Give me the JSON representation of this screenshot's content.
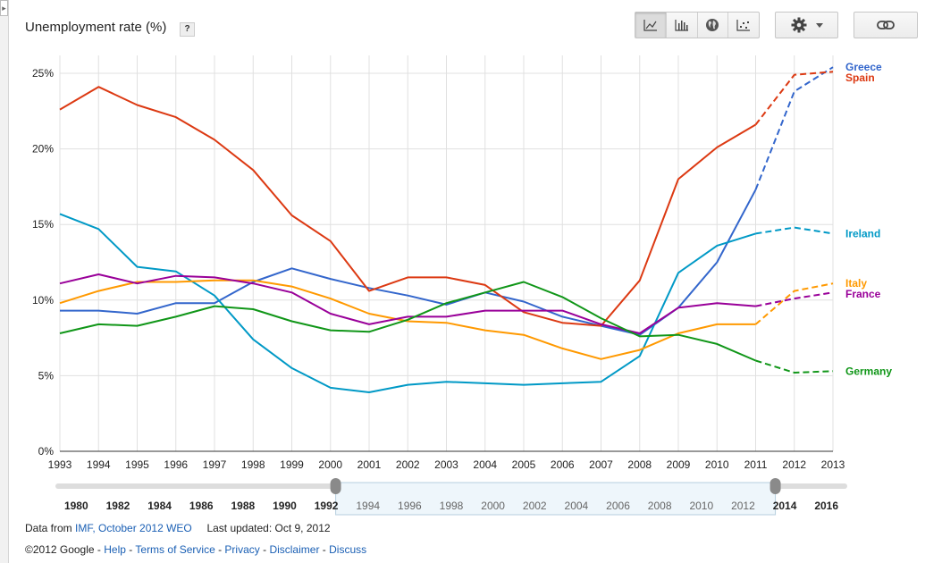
{
  "title": "Unemployment rate (%)",
  "help_label": "?",
  "expand_label": "▸",
  "toolbar": {
    "chart_types": [
      {
        "icon": "line-chart-icon",
        "active": true
      },
      {
        "icon": "bar-chart-icon",
        "active": false
      },
      {
        "icon": "globe-map-icon",
        "active": false
      },
      {
        "icon": "scatter-chart-icon",
        "active": false
      }
    ],
    "settings_icon": "gear-icon",
    "link_icon": "link-icon"
  },
  "chart_data": {
    "type": "line",
    "x": [
      1993,
      1994,
      1995,
      1996,
      1997,
      1998,
      1999,
      2000,
      2001,
      2002,
      2003,
      2004,
      2005,
      2006,
      2007,
      2008,
      2009,
      2010,
      2011,
      2012,
      2013
    ],
    "xlim": [
      1993,
      2013
    ],
    "ylim": [
      0,
      25
    ],
    "y_ticks": [
      "0%",
      "5%",
      "10%",
      "15%",
      "20%",
      "25%"
    ],
    "grid": true,
    "legend_placement": "right, at line ends",
    "projection_start": 2011,
    "series": [
      {
        "name": "Greece",
        "color": "#3366cc",
        "values": [
          9.3,
          9.3,
          9.1,
          9.8,
          9.8,
          11.2,
          12.1,
          11.4,
          10.8,
          10.3,
          9.7,
          10.5,
          9.9,
          8.9,
          8.3,
          7.7,
          9.5,
          12.5,
          17.3,
          23.8,
          25.4
        ]
      },
      {
        "name": "Spain",
        "color": "#dc3912",
        "values": [
          22.6,
          24.1,
          22.9,
          22.1,
          20.6,
          18.6,
          15.6,
          13.9,
          10.6,
          11.5,
          11.5,
          11.0,
          9.2,
          8.5,
          8.3,
          11.3,
          18.0,
          20.1,
          21.6,
          24.9,
          25.1
        ]
      },
      {
        "name": "Ireland",
        "color": "#0099c6",
        "values": [
          15.7,
          14.7,
          12.2,
          11.9,
          10.3,
          7.4,
          5.5,
          4.2,
          3.9,
          4.4,
          4.6,
          4.5,
          4.4,
          4.5,
          4.6,
          6.3,
          11.8,
          13.6,
          14.4,
          14.8,
          14.4
        ]
      },
      {
        "name": "Italy",
        "color": "#ff9900",
        "values": [
          9.8,
          10.6,
          11.2,
          11.2,
          11.3,
          11.3,
          10.9,
          10.1,
          9.1,
          8.6,
          8.5,
          8.0,
          7.7,
          6.8,
          6.1,
          6.7,
          7.8,
          8.4,
          8.4,
          10.6,
          11.1
        ]
      },
      {
        "name": "France",
        "color": "#990099",
        "values": [
          11.1,
          11.7,
          11.1,
          11.6,
          11.5,
          11.1,
          10.5,
          9.1,
          8.4,
          8.9,
          8.9,
          9.3,
          9.3,
          9.3,
          8.4,
          7.8,
          9.5,
          9.8,
          9.6,
          10.1,
          10.5
        ]
      },
      {
        "name": "Germany",
        "color": "#109618",
        "values": [
          7.8,
          8.4,
          8.3,
          8.9,
          9.6,
          9.4,
          8.6,
          8.0,
          7.9,
          8.7,
          9.8,
          10.5,
          11.2,
          10.2,
          8.8,
          7.6,
          7.7,
          7.1,
          6.0,
          5.2,
          5.3
        ]
      }
    ]
  },
  "timeline": {
    "labels": [
      "1980",
      "1982",
      "1984",
      "1986",
      "1988",
      "1990",
      "1992",
      "1994",
      "1996",
      "1998",
      "2000",
      "2002",
      "2004",
      "2006",
      "2008",
      "2010",
      "2012",
      "2014",
      "2016"
    ],
    "selected_range": [
      1993,
      2013
    ]
  },
  "footer": {
    "data_from_label": "Data from",
    "source_link": "IMF, October 2012 WEO",
    "updated_label": "Last updated: Oct 9, 2012",
    "copyright": "©2012 Google",
    "links": [
      "Help",
      "Terms of Service",
      "Privacy",
      "Disclaimer",
      "Discuss"
    ],
    "separator": " - "
  }
}
